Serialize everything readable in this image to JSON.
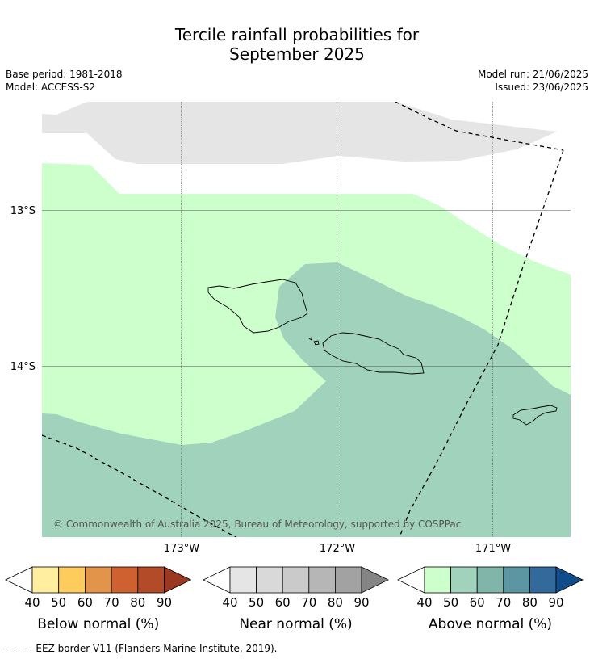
{
  "title": {
    "line1": "Tercile rainfall probabilities for",
    "line2": "September 2025"
  },
  "meta": {
    "base_period": "Base period: 1981-2018",
    "model": "Model: ACCESS-S2",
    "model_run": "Model run: 21/06/2025",
    "issued": "Issued: 23/06/2025"
  },
  "map": {
    "lat_labels": [
      "13°S",
      "14°S"
    ],
    "lon_labels": [
      "173°W",
      "172°W",
      "171°W"
    ],
    "copyright": "© Commonwealth of Australia 2025, Bureau of Meteorology, supported by COSPPac",
    "colors": {
      "near_normal_40_50": "#e5e5e5",
      "above_normal_40_50": "#ccffcc",
      "above_normal_50_60": "#a0d2bc",
      "gridline": "#555555",
      "eez_border": "#000000"
    }
  },
  "legend": {
    "tick_labels": [
      "40",
      "50",
      "60",
      "70",
      "80",
      "90"
    ],
    "below": {
      "label": "Below normal (%)",
      "colors": [
        "#ffffff",
        "#ffeda0",
        "#fecc5c",
        "#e2954a",
        "#cf6030",
        "#b34a28",
        "#9a3822"
      ]
    },
    "near": {
      "label": "Near normal (%)",
      "colors": [
        "#ffffff",
        "#e5e5e5",
        "#d9d9d9",
        "#cacaca",
        "#b6b6b6",
        "#a2a2a2",
        "#858585"
      ]
    },
    "above": {
      "label": "Above normal (%)",
      "colors": [
        "#ffffff",
        "#ccffcc",
        "#a0d2bc",
        "#80b5aa",
        "#5b96a2",
        "#336a9c",
        "#0f4c89"
      ]
    }
  },
  "footnote": "--  --  -- EEZ border V11 (Flanders Marine Institute, 2019)."
}
